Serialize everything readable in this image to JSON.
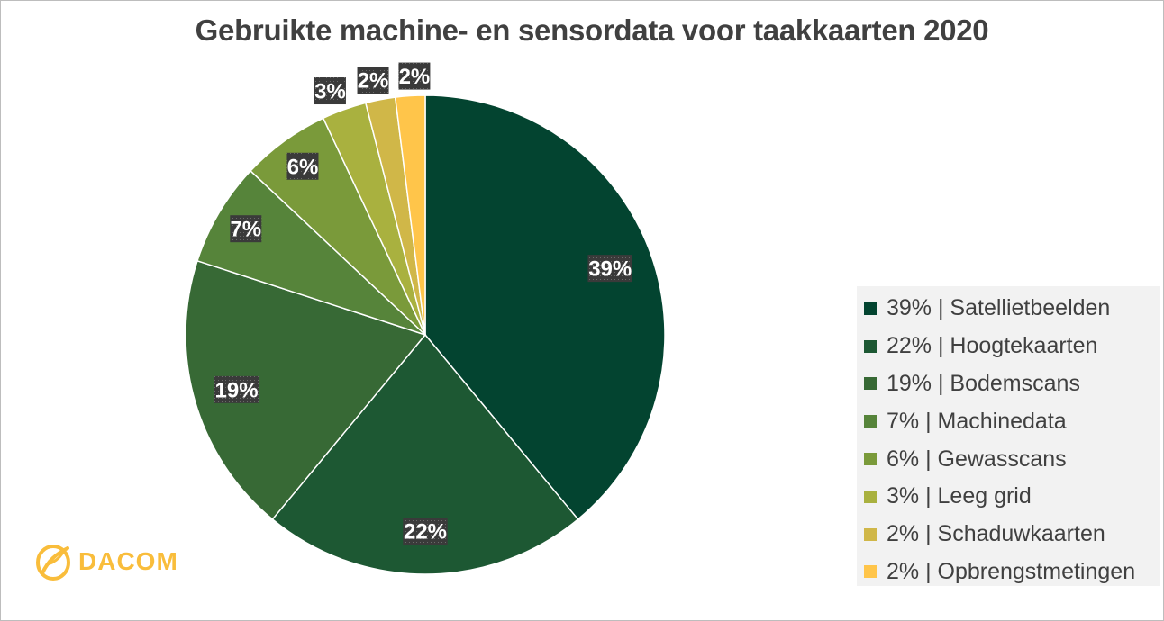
{
  "chart_data": {
    "type": "pie",
    "title": "Gebruikte machine- en sensordata voor taakkaarten 2020",
    "slices": [
      {
        "label": "39% | Satellietbeelden",
        "value": 39,
        "data_label": "39%",
        "color": "#034430"
      },
      {
        "label": "22% | Hoogtekaarten",
        "value": 22,
        "data_label": "22%",
        "color": "#1d5833"
      },
      {
        "label": "19% | Bodemscans",
        "value": 19,
        "data_label": "19%",
        "color": "#376935"
      },
      {
        "label": "7% | Machinedata",
        "value": 7,
        "data_label": "7%",
        "color": "#56843a"
      },
      {
        "label": "6% | Gewasscans",
        "value": 6,
        "data_label": "6%",
        "color": "#7a9a3a"
      },
      {
        "label": "3% | Leeg grid",
        "value": 3,
        "data_label": "3%",
        "color": "#a9b13f"
      },
      {
        "label": "2% | Schaduwkaarten",
        "value": 2,
        "data_label": "2%",
        "color": "#d0b748"
      },
      {
        "label": "2% | Opbrengstmetingen",
        "value": 2,
        "data_label": "2%",
        "color": "#ffc54a"
      }
    ],
    "legend_position": "right"
  },
  "logo": {
    "text": "DACOM",
    "icon": "dacom-leaf-logo-icon",
    "color": "#f9bd3b"
  }
}
